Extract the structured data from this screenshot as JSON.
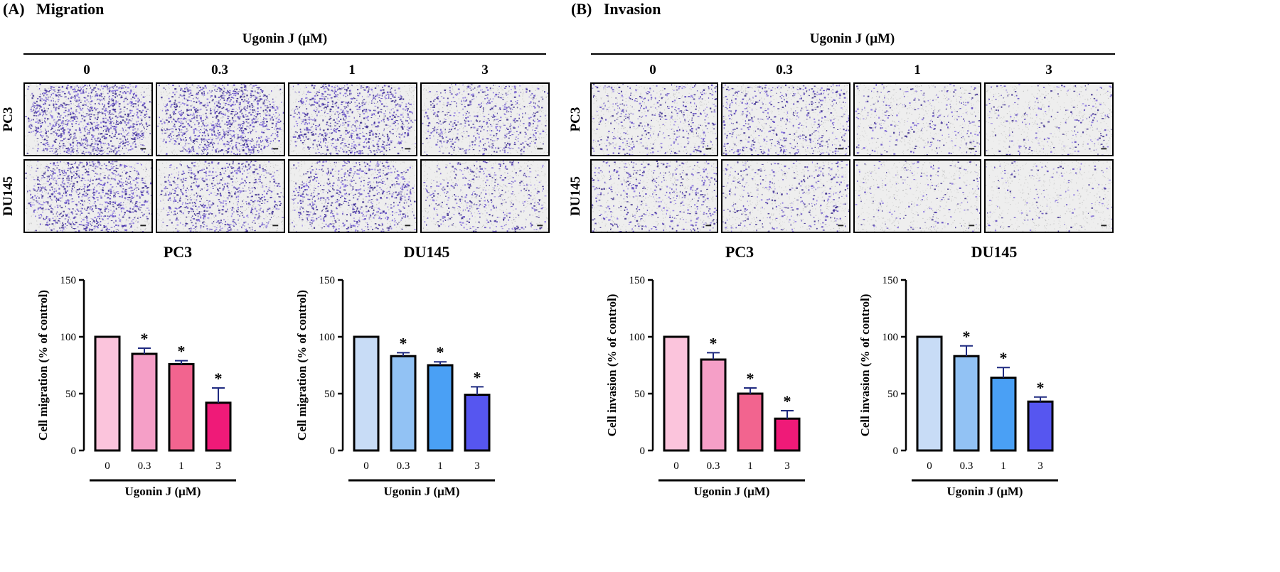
{
  "panels": [
    {
      "label": "(A)",
      "title": "Migration",
      "header": "Ugonin J (μM)",
      "concentrations": [
        "0",
        "0.3",
        "1",
        "3"
      ],
      "rows": [
        "PC3",
        "DU145"
      ],
      "stain": {
        "pc3": [
          0.95,
          0.85,
          0.7,
          0.45
        ],
        "du145": [
          0.8,
          0.55,
          0.6,
          0.35
        ]
      }
    },
    {
      "label": "(B)",
      "title": "Invasion",
      "header": "Ugonin J (μM)",
      "concentrations": [
        "0",
        "0.3",
        "1",
        "3"
      ],
      "rows": [
        "PC3",
        "DU145"
      ],
      "stain": {
        "pc3": [
          0.3,
          0.35,
          0.18,
          0.14
        ],
        "du145": [
          0.3,
          0.22,
          0.1,
          0.08
        ]
      }
    }
  ],
  "chart_data": [
    {
      "type": "bar",
      "title": "PC3",
      "categories": [
        "0",
        "0.3",
        "1",
        "3"
      ],
      "values": [
        100,
        85,
        76,
        42
      ],
      "errors": [
        0,
        5,
        3,
        13
      ],
      "significance": [
        "",
        "*",
        "*",
        "*"
      ],
      "colors": [
        "#fbc4dc",
        "#f59fc7",
        "#f2648f",
        "#ef1a78"
      ],
      "xlabel": "Ugonin J (μM)",
      "ylabel": "Cell migration (% of control)",
      "yticks": [
        "0",
        "50",
        "100",
        "150"
      ],
      "ylim": [
        0,
        150
      ]
    },
    {
      "type": "bar",
      "title": "DU145",
      "categories": [
        "0",
        "0.3",
        "1",
        "3"
      ],
      "values": [
        100,
        83,
        75,
        49
      ],
      "errors": [
        0,
        3,
        3,
        7
      ],
      "significance": [
        "",
        "*",
        "*",
        "*"
      ],
      "colors": [
        "#c8dcf6",
        "#92c2f4",
        "#4aa0f5",
        "#5656f0"
      ],
      "xlabel": "Ugonin J (μM)",
      "ylabel": "Cell migration (% of control)",
      "yticks": [
        "0",
        "50",
        "100",
        "150"
      ],
      "ylim": [
        0,
        150
      ]
    },
    {
      "type": "bar",
      "title": "PC3",
      "categories": [
        "0",
        "0.3",
        "1",
        "3"
      ],
      "values": [
        100,
        80,
        50,
        28
      ],
      "errors": [
        0,
        6,
        5,
        7
      ],
      "significance": [
        "",
        "*",
        "*",
        "*"
      ],
      "colors": [
        "#fbc4dc",
        "#f59fc7",
        "#f2648f",
        "#ef1a78"
      ],
      "xlabel": "Ugonin J (μM)",
      "ylabel": "Cell invasion (% of control)",
      "yticks": [
        "0",
        "50",
        "100",
        "150"
      ],
      "ylim": [
        0,
        150
      ]
    },
    {
      "type": "bar",
      "title": "DU145",
      "categories": [
        "0",
        "0.3",
        "1",
        "3"
      ],
      "values": [
        100,
        83,
        64,
        43
      ],
      "errors": [
        0,
        9,
        9,
        4
      ],
      "significance": [
        "",
        "*",
        "*",
        "*"
      ],
      "colors": [
        "#c8dcf6",
        "#92c2f4",
        "#4aa0f5",
        "#5656f0"
      ],
      "xlabel": "Ugonin J (μM)",
      "ylabel": "Cell invasion (% of control)",
      "yticks": [
        "0",
        "50",
        "100",
        "150"
      ],
      "ylim": [
        0,
        150
      ]
    }
  ]
}
